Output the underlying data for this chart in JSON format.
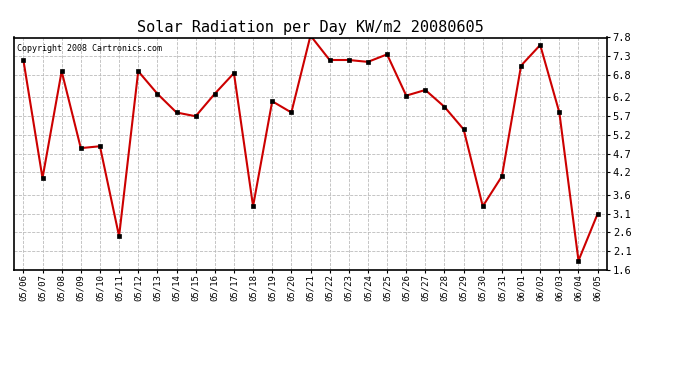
{
  "title": "Solar Radiation per Day KW/m2 20080605",
  "copyright": "Copyright 2008 Cartronics.com",
  "dates": [
    "05/06",
    "05/07",
    "05/08",
    "05/09",
    "05/10",
    "05/11",
    "05/12",
    "05/13",
    "05/14",
    "05/15",
    "05/16",
    "05/17",
    "05/18",
    "05/19",
    "05/20",
    "05/21",
    "05/22",
    "05/23",
    "05/24",
    "05/25",
    "05/26",
    "05/27",
    "05/28",
    "05/29",
    "05/30",
    "05/31",
    "06/01",
    "06/02",
    "06/03",
    "06/04",
    "06/05"
  ],
  "values": [
    7.2,
    4.05,
    6.9,
    4.85,
    4.9,
    2.5,
    6.9,
    6.3,
    5.8,
    5.7,
    6.3,
    6.85,
    3.3,
    6.1,
    5.8,
    7.85,
    7.2,
    7.2,
    7.15,
    7.35,
    6.25,
    6.4,
    5.95,
    5.35,
    3.3,
    4.1,
    7.05,
    7.6,
    5.8,
    1.85,
    3.1
  ],
  "line_color": "#cc0000",
  "marker": "s",
  "marker_size": 2.5,
  "ylim": [
    1.6,
    7.8
  ],
  "yticks": [
    1.6,
    2.1,
    2.6,
    3.1,
    3.6,
    4.2,
    4.7,
    5.2,
    5.7,
    6.2,
    6.8,
    7.3,
    7.8
  ],
  "bg_color": "#ffffff",
  "grid_color": "#bbbbbb",
  "title_fontsize": 11
}
